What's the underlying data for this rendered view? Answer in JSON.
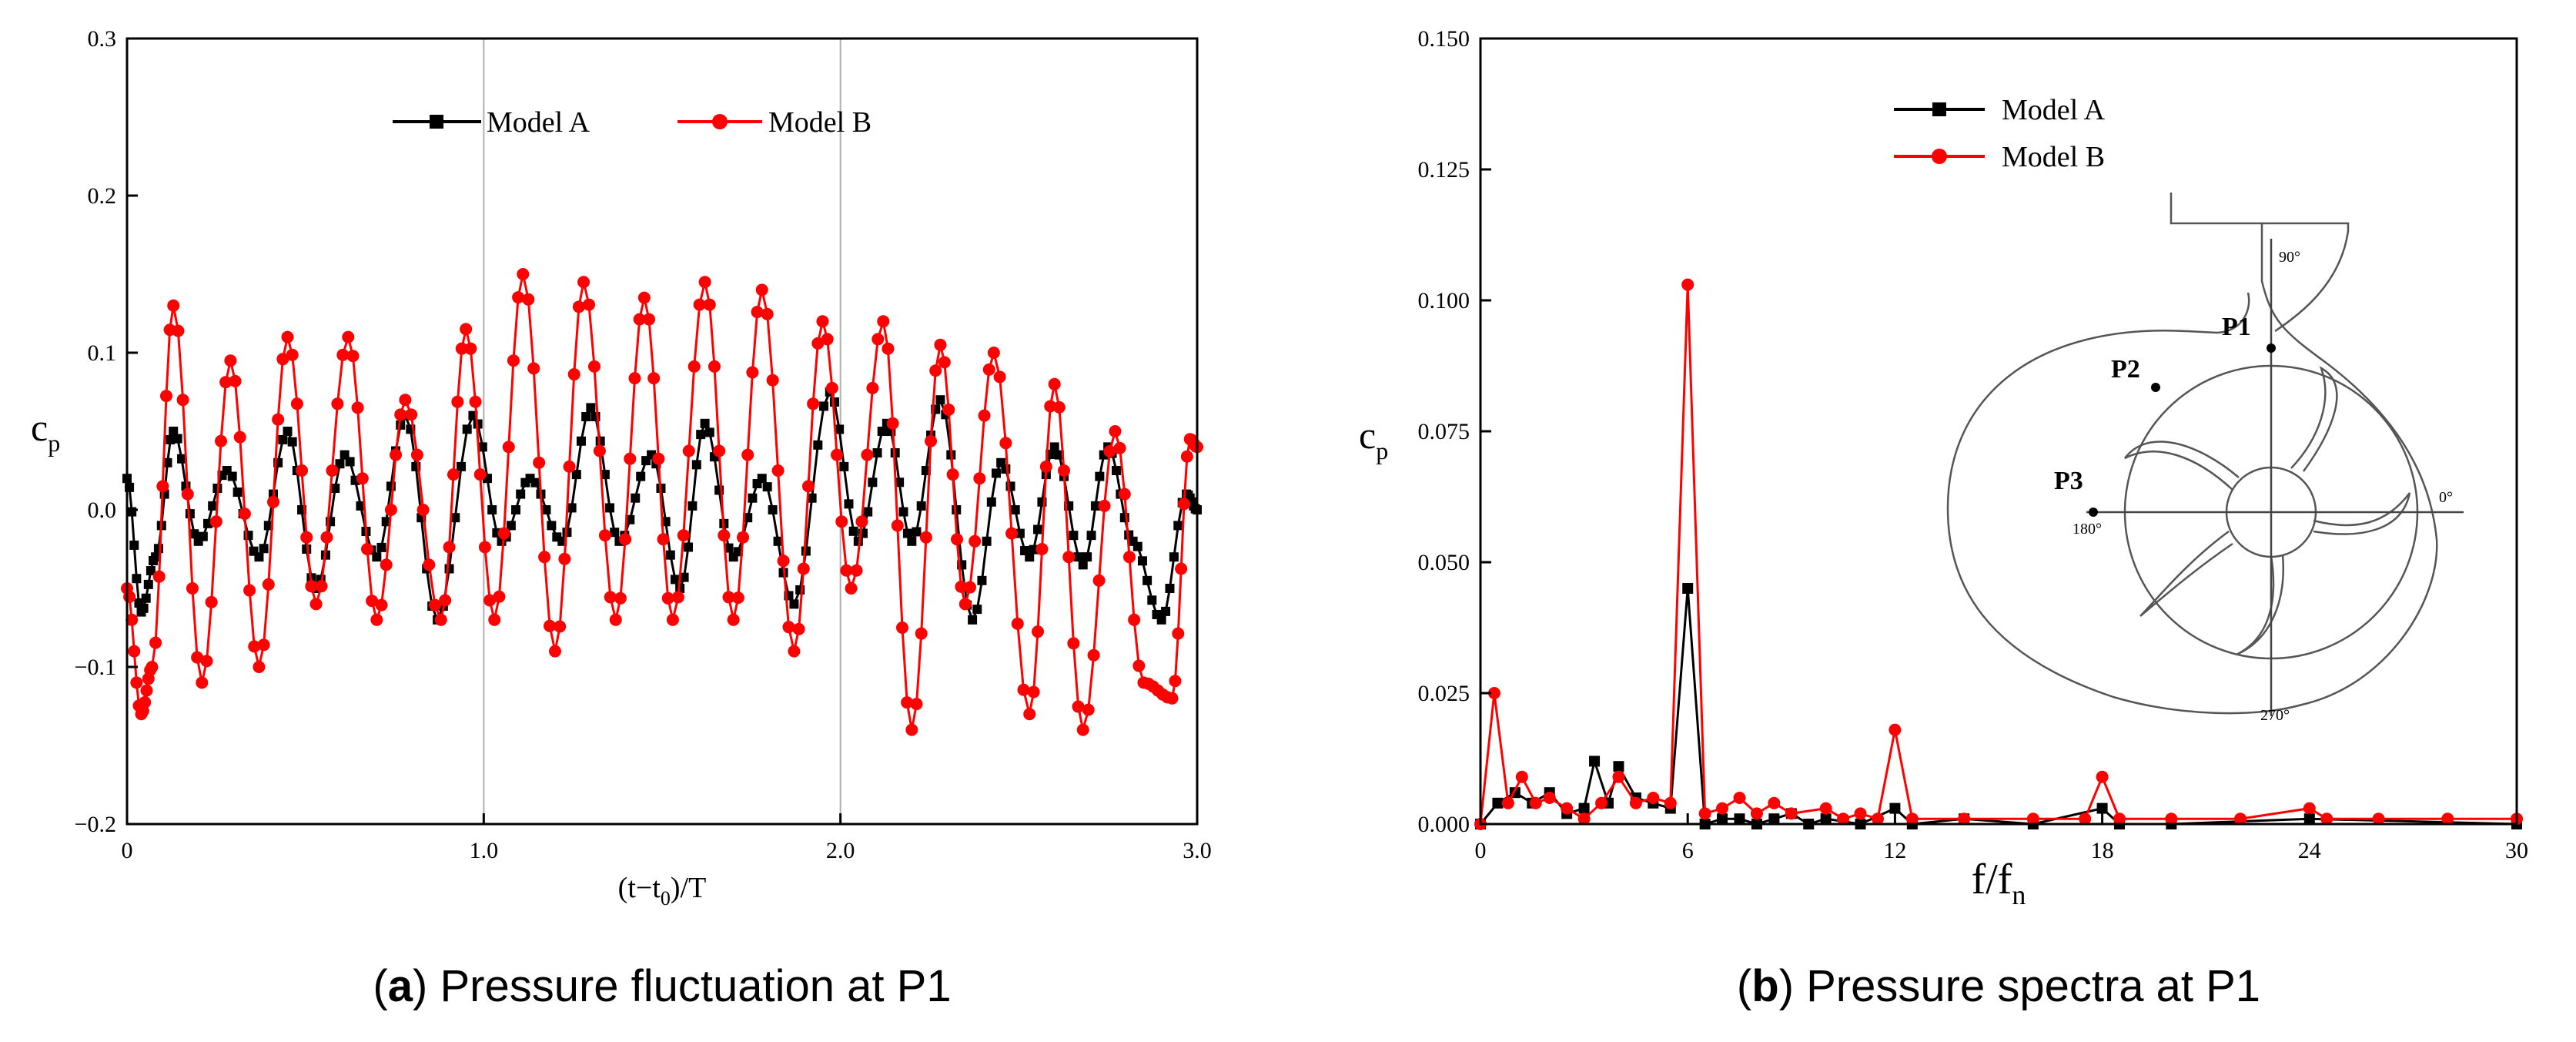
{
  "colors": {
    "model_a": "#000000",
    "model_b": "#ff0000",
    "grid": "#b0b0b0",
    "inset_line": "#555555"
  },
  "captions": {
    "a": {
      "label": "a",
      "text": "Pressure fluctuation at P1"
    },
    "b": {
      "label": "b",
      "text": "Pressure spectra at P1"
    }
  },
  "inset": {
    "points": [
      "P1",
      "P2",
      "P3"
    ],
    "angles": [
      "90°",
      "0°",
      "180°",
      "270°"
    ]
  },
  "chart_data": [
    {
      "id": "left",
      "type": "line",
      "xlabel": "(t−t",
      "xlabel_sub": "0",
      "xlabel_tail": ")/T",
      "ylabel": "c",
      "ylabel_sub": "p",
      "xlim": [
        0,
        3.0
      ],
      "ylim": [
        -0.2,
        0.3
      ],
      "x_ticks": [
        {
          "value": 0,
          "label": "0"
        },
        {
          "value": 1.0,
          "label": "1.0"
        },
        {
          "value": 2.0,
          "label": "2.0"
        },
        {
          "value": 3.0,
          "label": "3.0"
        }
      ],
      "y_ticks": [
        {
          "value": -0.2,
          "label": "−0.2"
        },
        {
          "value": -0.1,
          "label": "−0.1"
        },
        {
          "value": 0.0,
          "label": "0.0"
        },
        {
          "value": 0.1,
          "label": "0.1"
        },
        {
          "value": 0.2,
          "label": "0.2"
        },
        {
          "value": 0.3,
          "label": "0.3"
        }
      ],
      "vgrid": [
        1.0,
        2.0
      ],
      "legend": [
        "Model A",
        "Model B"
      ],
      "series": [
        {
          "name": "Model A",
          "color": "#000000",
          "marker": "square",
          "points": [
            [
              0,
              0.02
            ],
            [
              0.04,
              -0.065
            ],
            [
              0.08,
              -0.03
            ],
            [
              0.13,
              0.05
            ],
            [
              0.2,
              -0.02
            ],
            [
              0.28,
              0.025
            ],
            [
              0.37,
              -0.03
            ],
            [
              0.45,
              0.05
            ],
            [
              0.53,
              -0.05
            ],
            [
              0.61,
              0.035
            ],
            [
              0.7,
              -0.03
            ],
            [
              0.78,
              0.06
            ],
            [
              0.87,
              -0.07
            ],
            [
              0.97,
              0.06
            ],
            [
              1.05,
              -0.02
            ],
            [
              1.13,
              0.02
            ],
            [
              1.22,
              -0.02
            ],
            [
              1.3,
              0.065
            ],
            [
              1.38,
              -0.02
            ],
            [
              1.47,
              0.035
            ],
            [
              1.55,
              -0.05
            ],
            [
              1.62,
              0.055
            ],
            [
              1.7,
              -0.03
            ],
            [
              1.78,
              0.02
            ],
            [
              1.87,
              -0.06
            ],
            [
              1.97,
              0.075
            ],
            [
              2.05,
              -0.02
            ],
            [
              2.13,
              0.055
            ],
            [
              2.2,
              -0.02
            ],
            [
              2.28,
              0.07
            ],
            [
              2.37,
              -0.07
            ],
            [
              2.45,
              0.03
            ],
            [
              2.53,
              -0.03
            ],
            [
              2.6,
              0.04
            ],
            [
              2.68,
              -0.035
            ],
            [
              2.75,
              0.04
            ],
            [
              2.82,
              -0.02
            ],
            [
              2.9,
              -0.07
            ],
            [
              2.97,
              0.01
            ],
            [
              3.0,
              0.0
            ]
          ]
        },
        {
          "name": "Model B",
          "color": "#ff0000",
          "marker": "circle",
          "points": [
            [
              0,
              -0.05
            ],
            [
              0.04,
              -0.13
            ],
            [
              0.07,
              -0.1
            ],
            [
              0.13,
              0.13
            ],
            [
              0.21,
              -0.11
            ],
            [
              0.29,
              0.095
            ],
            [
              0.37,
              -0.1
            ],
            [
              0.45,
              0.11
            ],
            [
              0.53,
              -0.06
            ],
            [
              0.62,
              0.11
            ],
            [
              0.7,
              -0.07
            ],
            [
              0.78,
              0.07
            ],
            [
              0.88,
              -0.07
            ],
            [
              0.95,
              0.115
            ],
            [
              1.03,
              -0.07
            ],
            [
              1.11,
              0.15
            ],
            [
              1.2,
              -0.09
            ],
            [
              1.28,
              0.145
            ],
            [
              1.37,
              -0.07
            ],
            [
              1.45,
              0.135
            ],
            [
              1.53,
              -0.07
            ],
            [
              1.62,
              0.145
            ],
            [
              1.7,
              -0.07
            ],
            [
              1.78,
              0.14
            ],
            [
              1.87,
              -0.09
            ],
            [
              1.95,
              0.12
            ],
            [
              2.03,
              -0.05
            ],
            [
              2.12,
              0.12
            ],
            [
              2.2,
              -0.14
            ],
            [
              2.28,
              0.105
            ],
            [
              2.35,
              -0.06
            ],
            [
              2.43,
              0.1
            ],
            [
              2.53,
              -0.13
            ],
            [
              2.6,
              0.08
            ],
            [
              2.68,
              -0.14
            ],
            [
              2.77,
              0.05
            ],
            [
              2.85,
              -0.11
            ],
            [
              2.93,
              -0.12
            ],
            [
              2.98,
              0.045
            ],
            [
              3.0,
              0.04
            ]
          ]
        }
      ]
    },
    {
      "id": "right",
      "type": "line",
      "xlabel": "f/f",
      "xlabel_sub": "n",
      "ylabel": "c",
      "ylabel_sub": "p",
      "xlim": [
        0,
        30
      ],
      "ylim": [
        0,
        0.15
      ],
      "x_ticks": [
        {
          "value": 0,
          "label": "0"
        },
        {
          "value": 6,
          "label": "6"
        },
        {
          "value": 12,
          "label": "12"
        },
        {
          "value": 18,
          "label": "18"
        },
        {
          "value": 24,
          "label": "24"
        },
        {
          "value": 30,
          "label": "30"
        }
      ],
      "y_ticks": [
        {
          "value": 0.0,
          "label": "0.000"
        },
        {
          "value": 0.025,
          "label": "0.025"
        },
        {
          "value": 0.05,
          "label": "0.050"
        },
        {
          "value": 0.075,
          "label": "0.075"
        },
        {
          "value": 0.1,
          "label": "0.100"
        },
        {
          "value": 0.125,
          "label": "0.125"
        },
        {
          "value": 0.15,
          "label": "0.150"
        }
      ],
      "legend": [
        "Model A",
        "Model B"
      ],
      "series": [
        {
          "name": "Model A",
          "color": "#000000",
          "marker": "square",
          "points": [
            [
              0,
              0
            ],
            [
              0.5,
              0.004
            ],
            [
              1,
              0.006
            ],
            [
              1.5,
              0.004
            ],
            [
              2,
              0.006
            ],
            [
              2.5,
              0.002
            ],
            [
              3,
              0.003
            ],
            [
              3.3,
              0.012
            ],
            [
              3.7,
              0.004
            ],
            [
              4,
              0.011
            ],
            [
              4.5,
              0.005
            ],
            [
              5,
              0.004
            ],
            [
              5.5,
              0.003
            ],
            [
              6,
              0.045
            ],
            [
              6.5,
              0
            ],
            [
              7,
              0.001
            ],
            [
              7.5,
              0.001
            ],
            [
              8,
              0
            ],
            [
              8.5,
              0.001
            ],
            [
              9,
              0.002
            ],
            [
              9.5,
              0
            ],
            [
              10,
              0.001
            ],
            [
              11,
              0
            ],
            [
              12,
              0.003
            ],
            [
              12.5,
              0
            ],
            [
              14,
              0.001
            ],
            [
              16,
              0
            ],
            [
              18,
              0.003
            ],
            [
              18.5,
              0
            ],
            [
              20,
              0
            ],
            [
              24,
              0.001
            ],
            [
              30,
              0
            ]
          ]
        },
        {
          "name": "Model B",
          "color": "#ff0000",
          "marker": "circle",
          "points": [
            [
              0,
              0
            ],
            [
              0.4,
              0.025
            ],
            [
              0.8,
              0.004
            ],
            [
              1.2,
              0.009
            ],
            [
              1.6,
              0.004
            ],
            [
              2,
              0.005
            ],
            [
              2.5,
              0.003
            ],
            [
              3,
              0.001
            ],
            [
              3.5,
              0.004
            ],
            [
              4,
              0.009
            ],
            [
              4.5,
              0.004
            ],
            [
              5,
              0.005
            ],
            [
              5.5,
              0.004
            ],
            [
              6,
              0.103
            ],
            [
              6.5,
              0.002
            ],
            [
              7,
              0.003
            ],
            [
              7.5,
              0.005
            ],
            [
              8,
              0.002
            ],
            [
              8.5,
              0.004
            ],
            [
              9,
              0.002
            ],
            [
              10,
              0.003
            ],
            [
              10.5,
              0.001
            ],
            [
              11,
              0.002
            ],
            [
              11.5,
              0.001
            ],
            [
              12,
              0.018
            ],
            [
              12.5,
              0.001
            ],
            [
              14,
              0.001
            ],
            [
              16,
              0.001
            ],
            [
              17.5,
              0.001
            ],
            [
              18,
              0.009
            ],
            [
              18.5,
              0.001
            ],
            [
              20,
              0.001
            ],
            [
              22,
              0.001
            ],
            [
              24,
              0.003
            ],
            [
              24.5,
              0.001
            ],
            [
              26,
              0.001
            ],
            [
              28,
              0.001
            ],
            [
              30,
              0.001
            ]
          ]
        }
      ]
    }
  ]
}
